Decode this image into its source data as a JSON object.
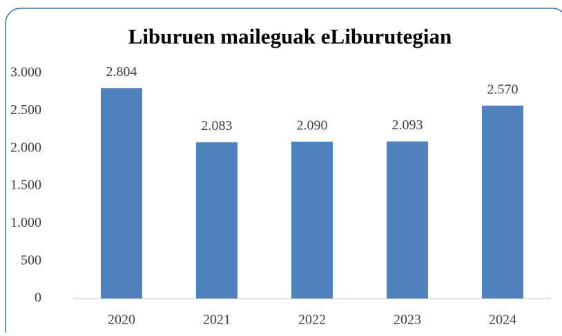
{
  "chart_data": {
    "type": "bar",
    "title": "Liburuen maileguak eLiburutegian",
    "categories": [
      "2020",
      "2021",
      "2022",
      "2023",
      "2024"
    ],
    "values": [
      2804,
      2083,
      2090,
      2093,
      2570
    ],
    "value_labels": [
      "2.804",
      "2.083",
      "2.090",
      "2.093",
      "2.570"
    ],
    "color": "#4f81bd",
    "ylim": [
      0,
      3000
    ],
    "yticks": [
      0,
      500,
      {
        "value": 1000,
        "label": "1.000"
      },
      {
        "value": 1500,
        "label": "1.500"
      },
      {
        "value": 2000,
        "label": "2.000"
      },
      {
        "value": 2500,
        "label": "2.500"
      },
      {
        "value": 3000,
        "label": "3.000"
      }
    ],
    "grid": false
  }
}
